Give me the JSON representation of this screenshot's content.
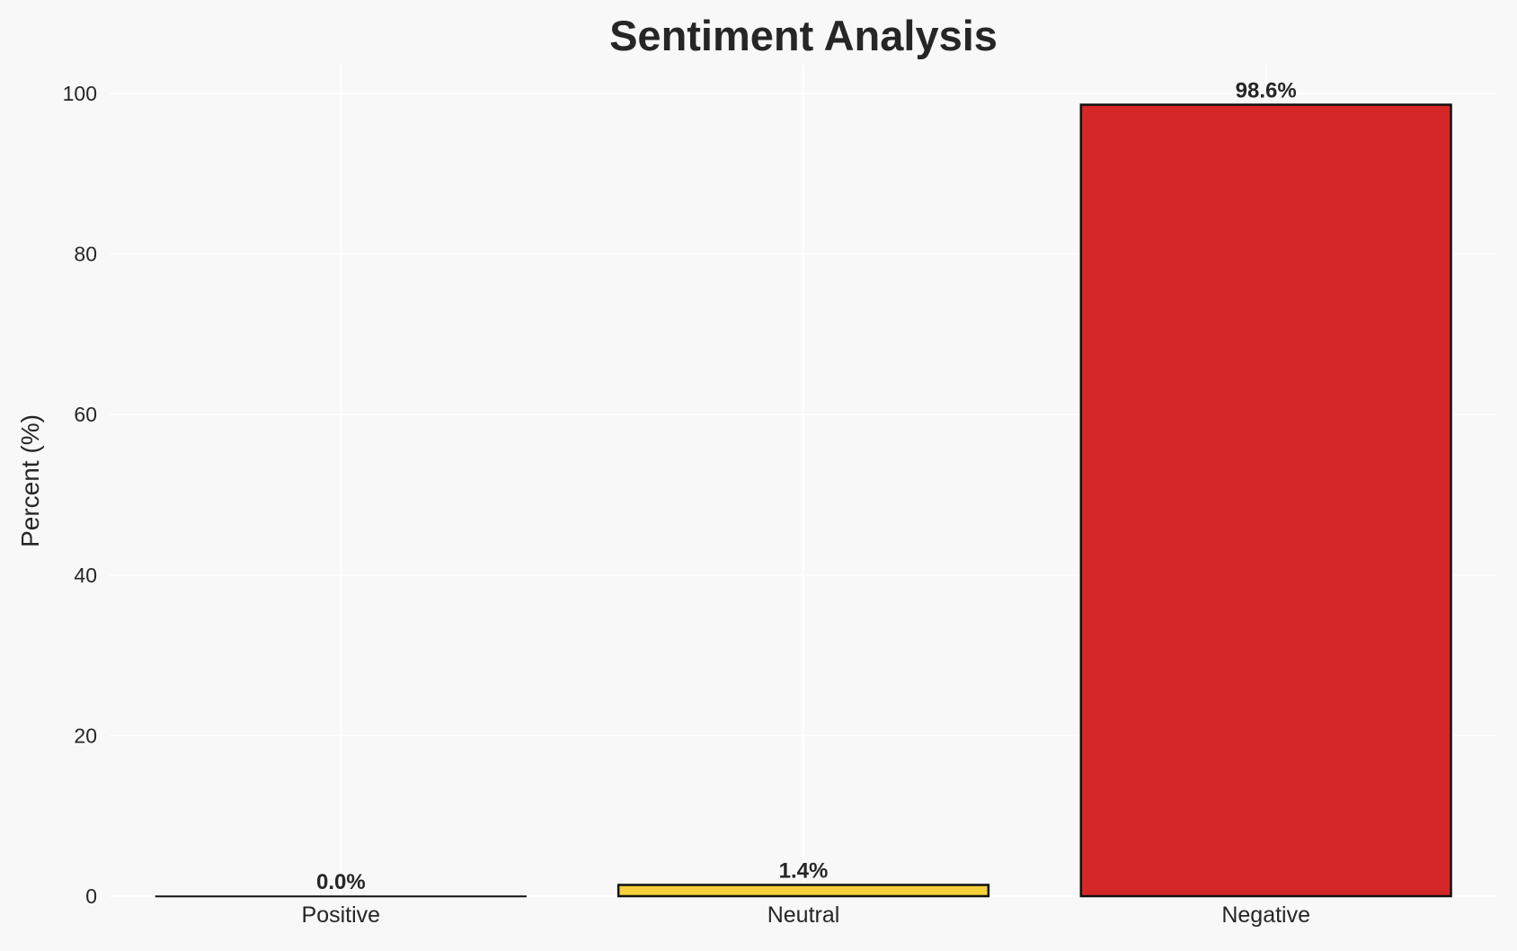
{
  "chart_data": {
    "type": "bar",
    "title": "Sentiment Analysis",
    "xlabel": "",
    "ylabel": "Percent (%)",
    "categories": [
      "Positive",
      "Neutral",
      "Negative"
    ],
    "values": [
      0.0,
      1.4,
      98.6
    ],
    "data_labels": [
      "0.0%",
      "1.4%",
      "98.6%"
    ],
    "colors": [
      "#2ca02c",
      "#f5d03a",
      "#d62728"
    ],
    "ylim": [
      0,
      103.5
    ],
    "yticks": [
      0,
      20,
      40,
      60,
      80,
      100
    ],
    "grid": true,
    "legend": "none",
    "background": "#f8f8f8"
  }
}
